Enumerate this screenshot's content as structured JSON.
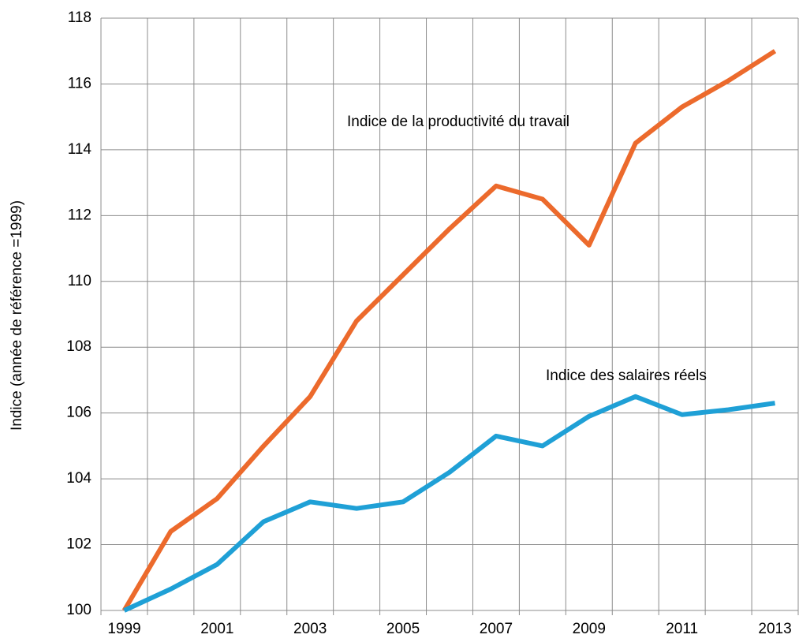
{
  "chart_data": {
    "type": "line",
    "ylabel": "Indice (année de référence =1999)",
    "categories": [
      "1999",
      null,
      "2001",
      null,
      "2003",
      null,
      "2005",
      null,
      "2007",
      null,
      "2009",
      null,
      "2011",
      null,
      "2013"
    ],
    "series": [
      {
        "name": "Indice de la productivité du travail",
        "color": "#ec6a2c",
        "values": [
          100,
          102.4,
          103.4,
          105.0,
          106.5,
          108.8,
          110.2,
          111.6,
          112.9,
          112.5,
          111.1,
          114.2,
          115.3,
          116.1,
          117.0
        ]
      },
      {
        "name": "Indice des salaires réels",
        "color": "#1fa0d6",
        "values": [
          100,
          100.65,
          101.4,
          102.7,
          103.3,
          103.1,
          103.3,
          104.2,
          105.3,
          105.0,
          105.9,
          106.5,
          105.95,
          106.1,
          106.3
        ]
      }
    ],
    "ylim": [
      100,
      118
    ],
    "yticks": [
      100,
      102,
      104,
      106,
      108,
      110,
      112,
      114,
      116,
      118
    ],
    "grid": true
  }
}
